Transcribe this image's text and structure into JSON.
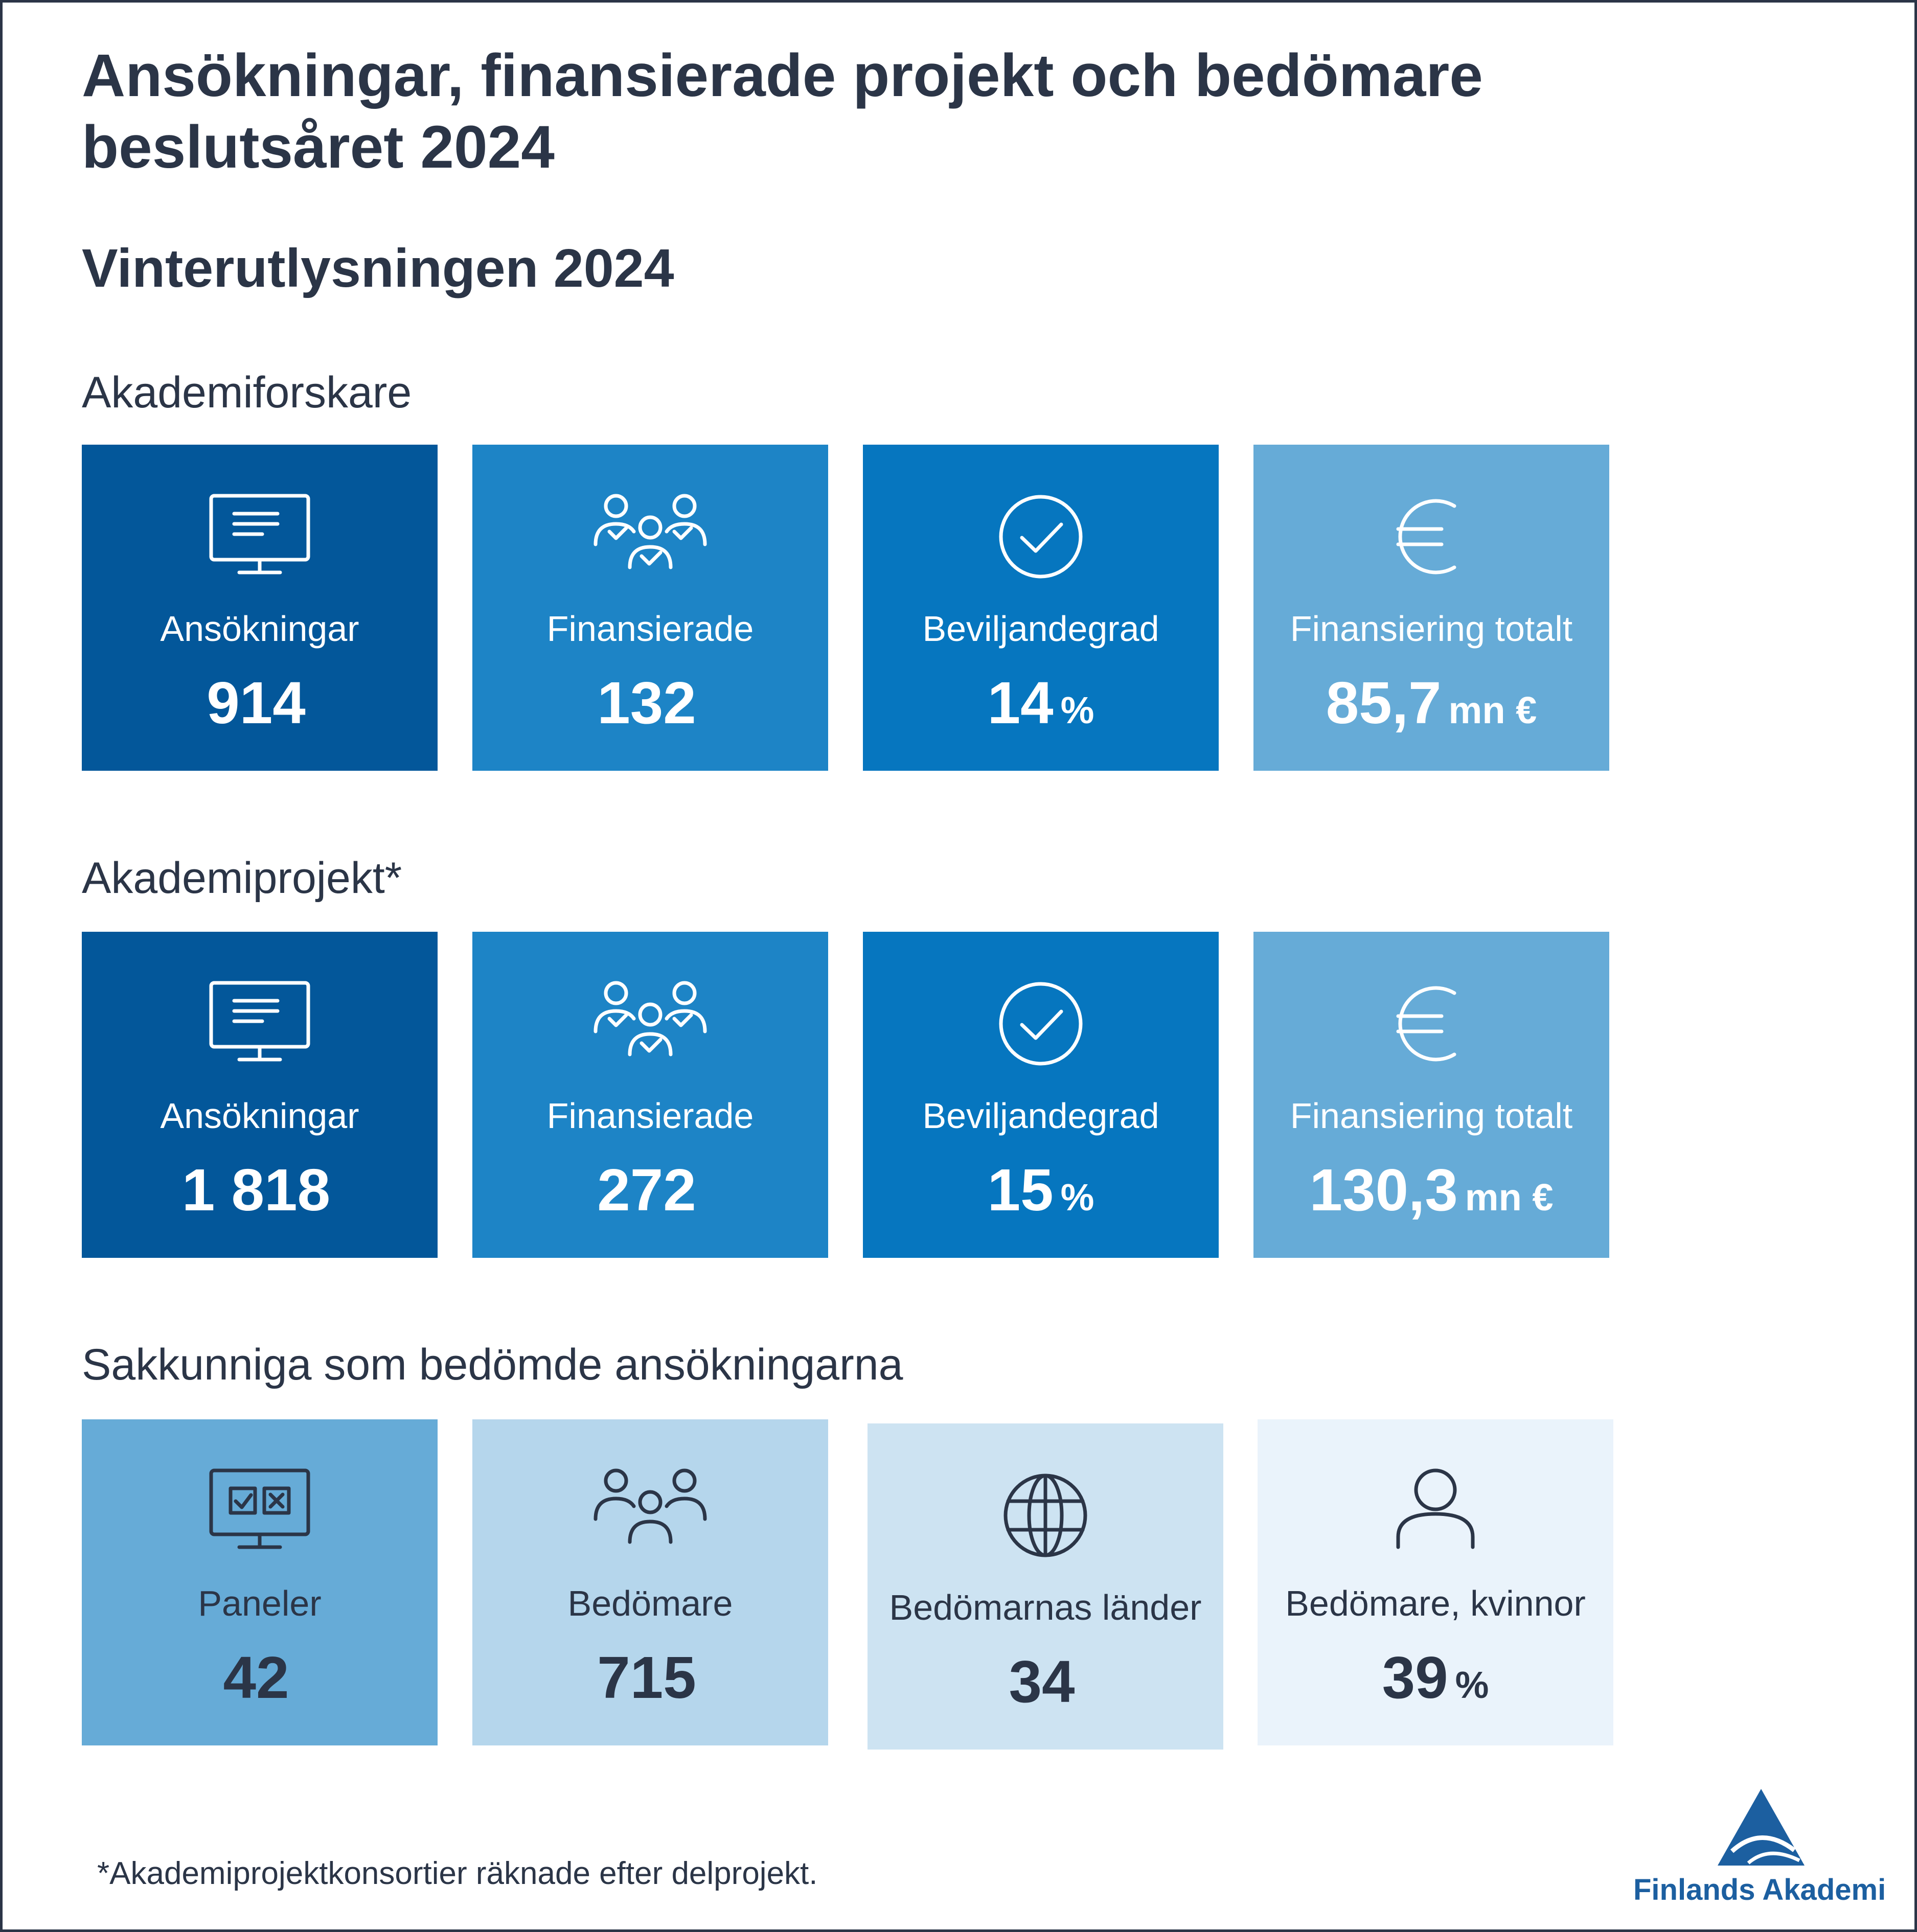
{
  "title": "Ansökningar, finansierade projekt och bedömare beslutsåret 2024",
  "subtitle": "Vinterutlysningen 2024",
  "colors": {
    "dark_blue": "#03579a",
    "mid_blue": "#1d84c6",
    "bright_blue": "#0676bf",
    "light_blue": "#66abd7",
    "pale_blue_1": "#b5d6ec",
    "pale_blue_2": "#cde3f2",
    "pale_blue_3": "#eaf3fb",
    "text_dark": "#2b3547",
    "logo_blue": "#1c5fa0"
  },
  "sections": [
    {
      "label": "Akademiforskare",
      "tiles": [
        {
          "icon": "monitor-icon",
          "label": "Ansökningar",
          "value": "914",
          "unit": ""
        },
        {
          "icon": "people-check-icon",
          "label": "Finansierade",
          "value": "132",
          "unit": ""
        },
        {
          "icon": "check-circle-icon",
          "label": "Beviljandegrad",
          "value": "14",
          "unit": "%"
        },
        {
          "icon": "euro-icon",
          "label": "Finansiering totalt",
          "value": "85,7",
          "unit": "mn €"
        }
      ]
    },
    {
      "label": "Akademiprojekt*",
      "tiles": [
        {
          "icon": "monitor-icon",
          "label": "Ansökningar",
          "value": "1 818",
          "unit": ""
        },
        {
          "icon": "people-check-icon",
          "label": "Finansierade",
          "value": "272",
          "unit": ""
        },
        {
          "icon": "check-circle-icon",
          "label": "Beviljandegrad",
          "value": "15",
          "unit": "%"
        },
        {
          "icon": "euro-icon",
          "label": "Finansiering totalt",
          "value": "130,3",
          "unit": "mn €"
        }
      ]
    },
    {
      "label": "Sakkunniga som bedömde ansökningarna",
      "tiles": [
        {
          "icon": "monitor-checkbox-icon",
          "label": "Paneler",
          "value": "42",
          "unit": ""
        },
        {
          "icon": "people-group-icon",
          "label": "Bedömare",
          "value": "715",
          "unit": ""
        },
        {
          "icon": "globe-icon",
          "label": "Bedömarnas länder",
          "value": "34",
          "unit": ""
        },
        {
          "icon": "person-icon",
          "label": "Bedömare, kvinnor",
          "value": "39",
          "unit": "%"
        }
      ]
    }
  ],
  "footnote": "*Akademiprojektkonsortier räknade efter delprojekt.",
  "logo": {
    "text": "Finlands Akademi"
  }
}
